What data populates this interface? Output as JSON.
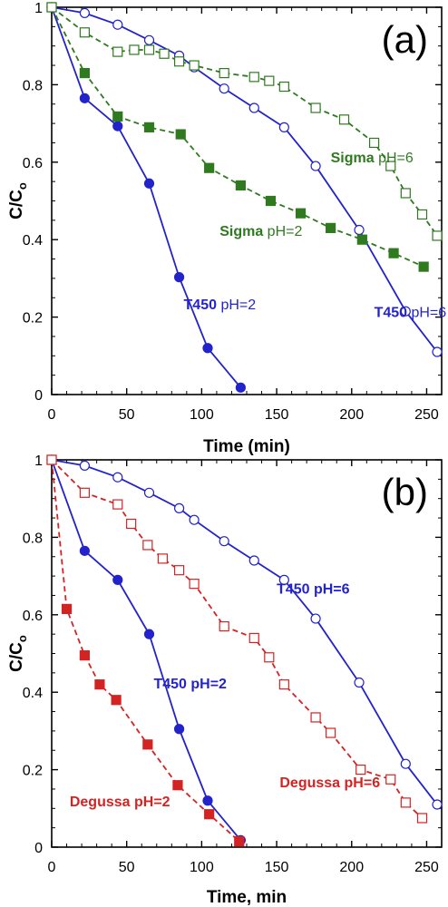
{
  "chart_data": [
    {
      "type": "line",
      "panel_label": "(a)",
      "xlabel": "Time (min)",
      "ylabel": "C/C",
      "ylabel_sub": "o",
      "xlim": [
        0,
        260
      ],
      "ylim": [
        0,
        1
      ],
      "xticks": [
        "0",
        "50",
        "100",
        "150",
        "200",
        "250"
      ],
      "yticks": [
        "0",
        "0.2",
        "0.4",
        "0.6",
        "0.8",
        "1"
      ],
      "grid": false,
      "series": [
        {
          "label_name": "T450",
          "label_cond": " pH=2",
          "color": "#2323cc",
          "marker": "circle",
          "filled": true,
          "dash": false,
          "x": [
            0,
            22,
            44,
            65,
            85,
            104,
            126
          ],
          "y": [
            1.0,
            0.765,
            0.693,
            0.545,
            0.303,
            0.12,
            0.018
          ],
          "label_at": [
            88,
            0.22
          ]
        },
        {
          "label_name": "T450",
          "label_cond": " pH=6",
          "color": "#2323cc",
          "marker": "circle",
          "filled": false,
          "dash": false,
          "x": [
            0,
            22,
            44,
            65,
            85,
            95,
            115,
            135,
            155,
            176,
            205,
            236,
            257
          ],
          "y": [
            1.0,
            0.985,
            0.955,
            0.915,
            0.875,
            0.845,
            0.79,
            0.74,
            0.69,
            0.59,
            0.425,
            0.215,
            0.11
          ],
          "label_at": [
            215,
            0.2
          ]
        },
        {
          "label_name": "Sigma",
          "label_cond": " pH=2",
          "color": "#2f7a1f",
          "marker": "square",
          "filled": true,
          "dash": true,
          "x": [
            0,
            22,
            44,
            65,
            86,
            105,
            126,
            146,
            166,
            186,
            207,
            228,
            248
          ],
          "y": [
            1.0,
            0.83,
            0.718,
            0.69,
            0.672,
            0.585,
            0.54,
            0.5,
            0.468,
            0.43,
            0.4,
            0.365,
            0.33
          ],
          "label_at": [
            112,
            0.41
          ]
        },
        {
          "label_name": "Sigma",
          "label_cond": " pH=6",
          "color": "#2f7a1f",
          "marker": "square",
          "filled": false,
          "dash": true,
          "x": [
            0,
            22,
            44,
            55,
            65,
            75,
            85,
            95,
            115,
            135,
            145,
            155,
            176,
            195,
            215,
            226,
            236,
            247,
            257
          ],
          "y": [
            1.0,
            0.935,
            0.885,
            0.89,
            0.89,
            0.88,
            0.86,
            0.85,
            0.83,
            0.82,
            0.81,
            0.795,
            0.74,
            0.71,
            0.65,
            0.59,
            0.52,
            0.465,
            0.41
          ],
          "label_at": [
            186,
            0.6
          ]
        }
      ]
    },
    {
      "type": "line",
      "panel_label": "(b)",
      "xlabel": "Time, min",
      "ylabel": "C/C",
      "ylabel_sub": "o",
      "xlim": [
        0,
        260
      ],
      "ylim": [
        0,
        1
      ],
      "xticks": [
        "0",
        "50",
        "100",
        "150",
        "200",
        "250"
      ],
      "yticks": [
        "0",
        "0.2",
        "0.4",
        "0.6",
        "0.8",
        "1"
      ],
      "grid": false,
      "series": [
        {
          "label_name": "T450 pH=2",
          "label_cond": "",
          "color": "#2323cc",
          "marker": "circle",
          "filled": true,
          "dash": false,
          "x": [
            0,
            22,
            44,
            65,
            85,
            104,
            126
          ],
          "y": [
            1.0,
            0.765,
            0.69,
            0.55,
            0.305,
            0.12,
            0.018
          ],
          "label_at": [
            68,
            0.41
          ]
        },
        {
          "label_name": "T450 pH=6",
          "label_cond": "",
          "color": "#2323cc",
          "marker": "circle",
          "filled": false,
          "dash": false,
          "x": [
            0,
            22,
            44,
            65,
            85,
            95,
            115,
            135,
            155,
            176,
            205,
            236,
            257
          ],
          "y": [
            1.0,
            0.985,
            0.955,
            0.915,
            0.875,
            0.845,
            0.79,
            0.74,
            0.69,
            0.59,
            0.425,
            0.215,
            0.11
          ],
          "label_at": [
            150,
            0.655
          ]
        },
        {
          "label_name": "Degussa pH=2",
          "label_cond": "",
          "color": "#d42323",
          "marker": "square",
          "filled": true,
          "dash": true,
          "x": [
            0,
            10,
            22,
            32,
            43,
            64,
            84,
            105,
            125
          ],
          "y": [
            1.0,
            0.615,
            0.495,
            0.42,
            0.38,
            0.265,
            0.16,
            0.085,
            0.015
          ],
          "label_at": [
            12,
            0.105
          ]
        },
        {
          "label_name": "Degussa pH=6",
          "label_cond": "",
          "color": "#d42323",
          "marker": "square",
          "filled": false,
          "dash": true,
          "x": [
            0,
            22,
            44,
            53,
            64,
            74,
            85,
            95,
            115,
            135,
            145,
            155,
            176,
            186,
            206,
            226,
            236,
            247
          ],
          "y": [
            1.0,
            0.915,
            0.885,
            0.835,
            0.78,
            0.745,
            0.715,
            0.68,
            0.57,
            0.54,
            0.49,
            0.42,
            0.335,
            0.295,
            0.2,
            0.175,
            0.115,
            0.075
          ],
          "label_at": [
            152,
            0.155
          ]
        }
      ]
    }
  ]
}
